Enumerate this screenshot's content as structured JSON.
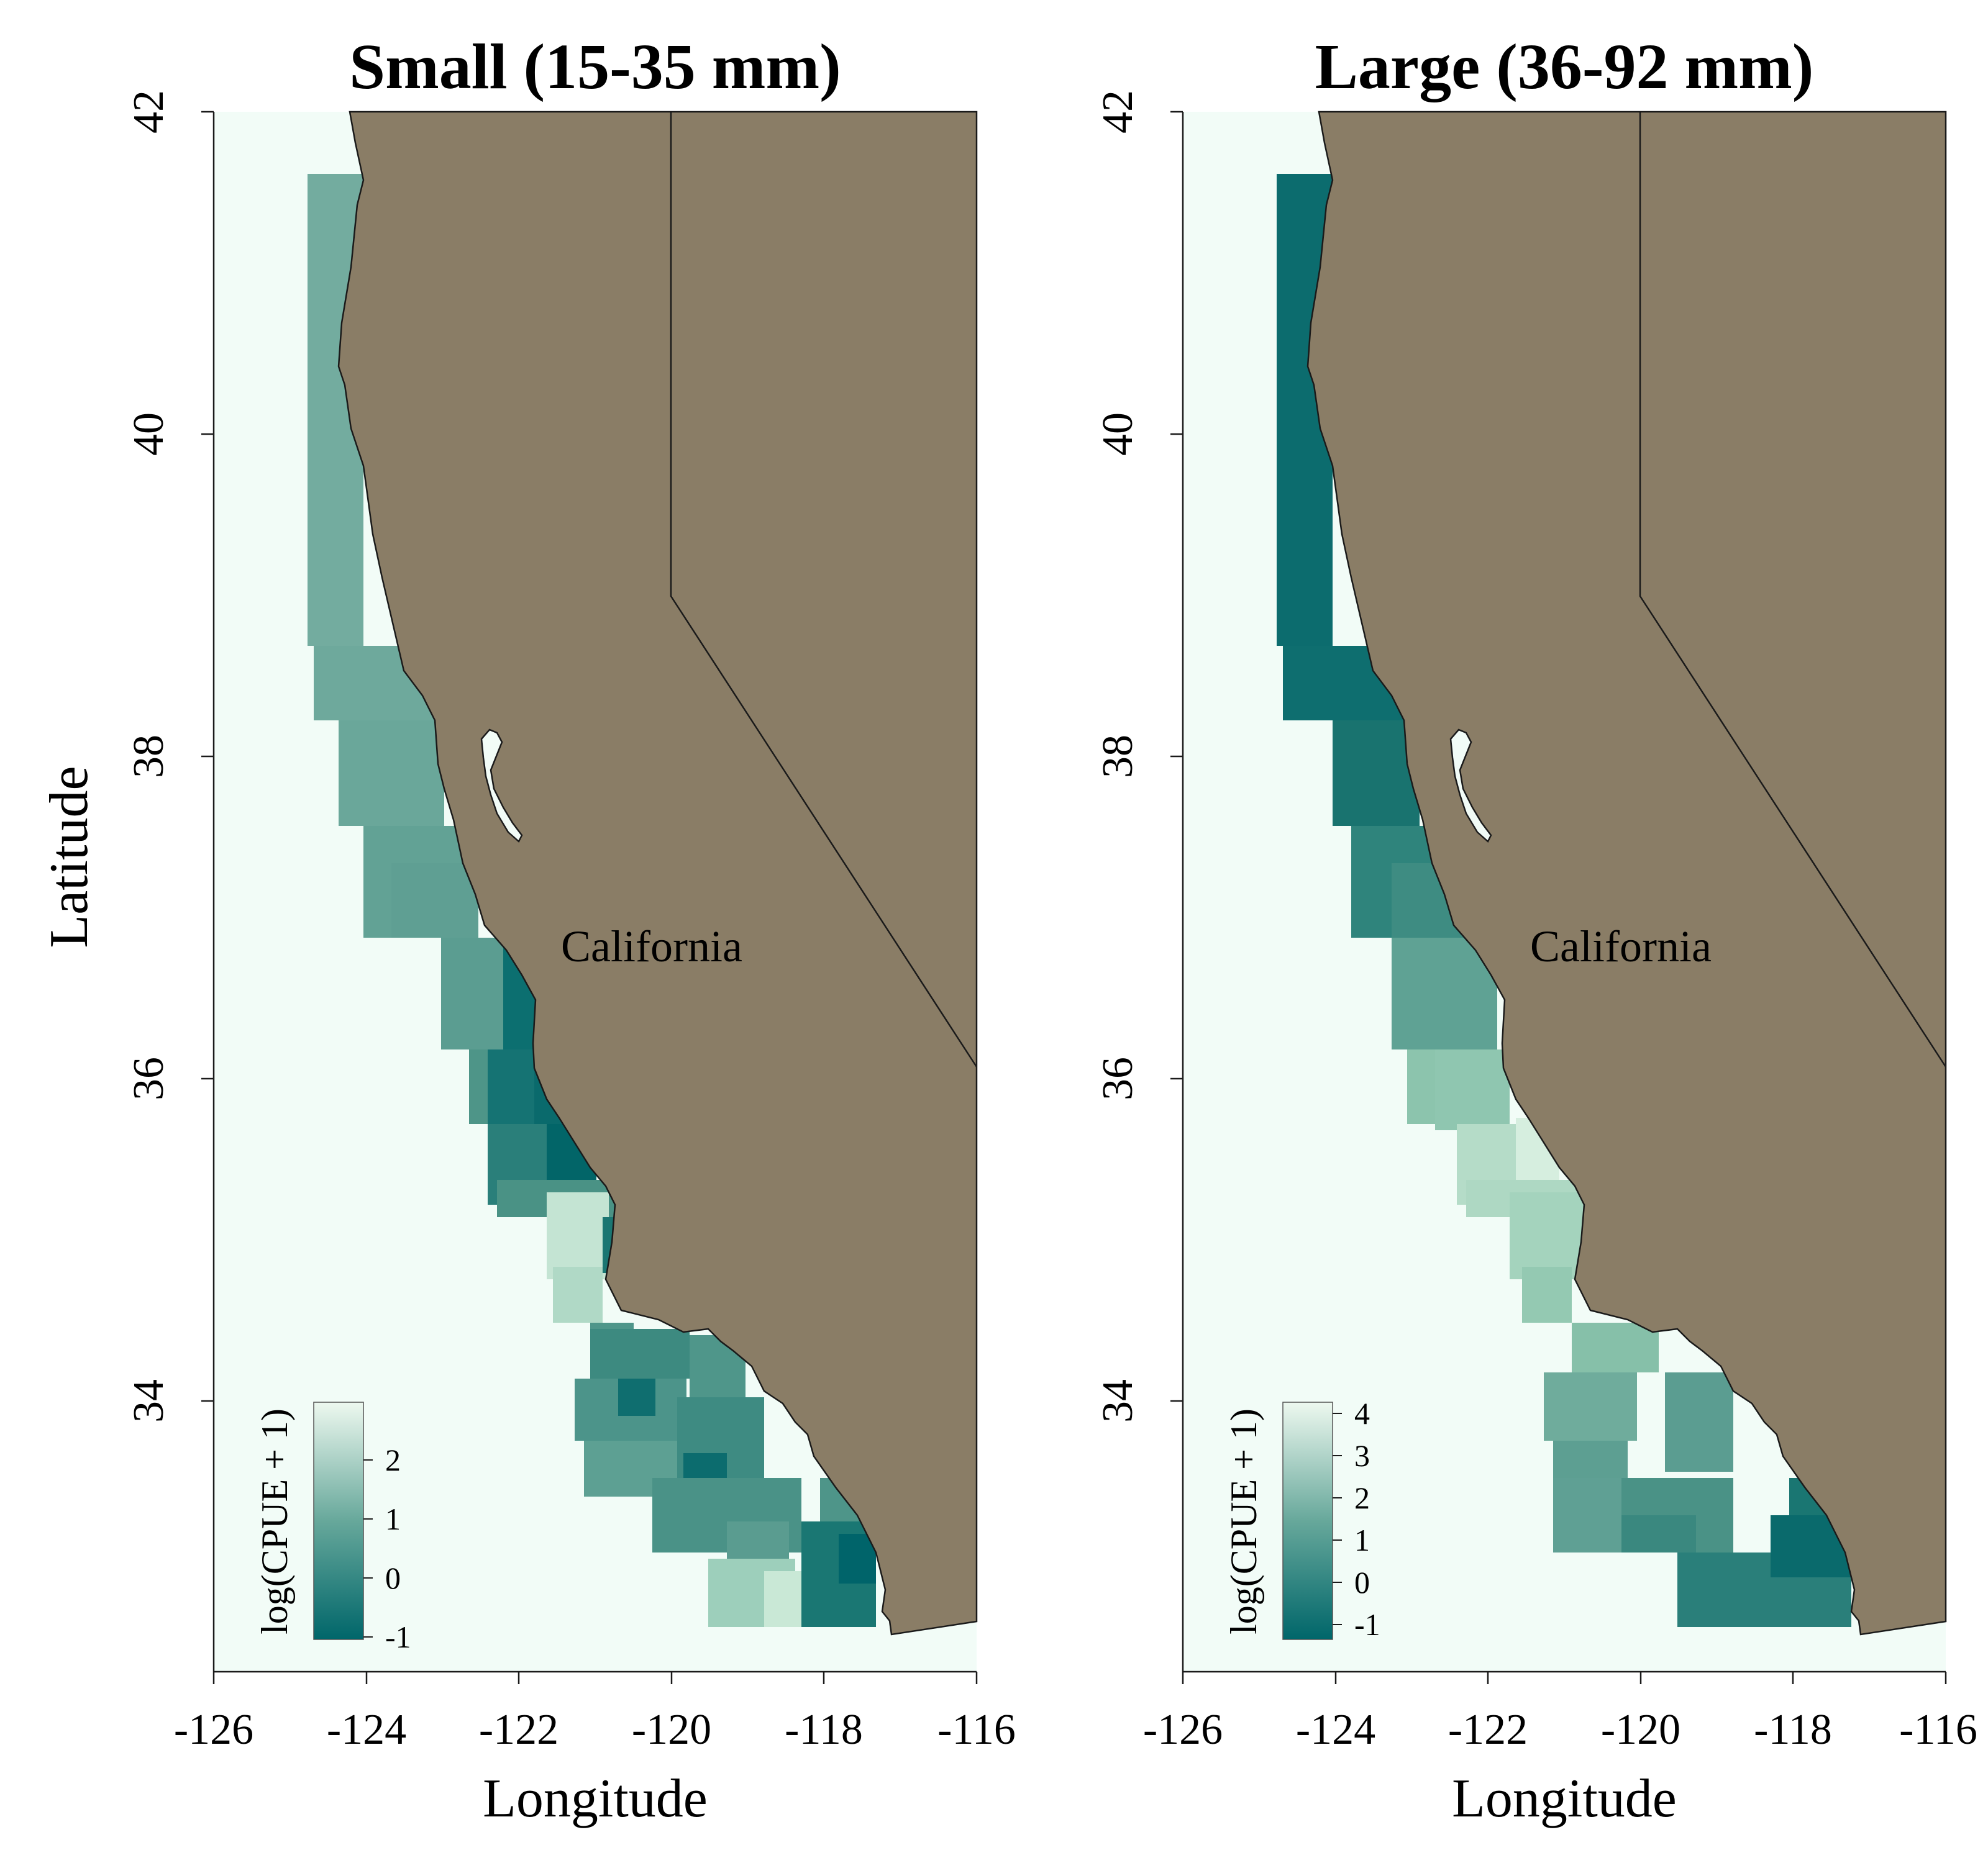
{
  "colors": {
    "ocean": "#f2fcf7",
    "land": "#8a7d66",
    "border": "#1a1a1a",
    "scale_low": "#00666a",
    "scale_mid": "#67a89b",
    "scale_high": "#edf8ef"
  },
  "y_axis_label": "Latitude",
  "panels": [
    {
      "title": "Small (15-35 mm)",
      "xlabel": "Longitude",
      "place_label": "California",
      "legend_title": "log(CPUE + 1)",
      "x_ticks": [
        "-126",
        "-124",
        "-122",
        "-120",
        "-118",
        "-116"
      ],
      "y_ticks": [
        "42",
        "40",
        "38",
        "36",
        "34"
      ],
      "legend_ticks": [
        "-1",
        "0",
        "1",
        "2"
      ],
      "cells": [
        {
          "lon": -124.4,
          "lat": 41.3,
          "value": 1.2
        },
        {
          "lon": -124.4,
          "lat": 40.5,
          "value": 1.0
        },
        {
          "lon": -124.2,
          "lat": 39.7,
          "value": 0.9
        },
        {
          "lon": -124.0,
          "lat": 38.9,
          "value": 0.9
        },
        {
          "lon": -123.6,
          "lat": 38.3,
          "value": 0.8
        },
        {
          "lon": -123.0,
          "lat": 37.7,
          "value": 0.7
        },
        {
          "lon": -122.6,
          "lat": 37.1,
          "value": 0.5
        },
        {
          "lon": -122.3,
          "lat": 36.6,
          "value": 0.1
        },
        {
          "lon": -121.9,
          "lat": 36.0,
          "value": -0.3
        },
        {
          "lon": -121.6,
          "lat": 35.6,
          "value": -0.6
        },
        {
          "lon": -121.2,
          "lat": 35.0,
          "value": 2.2
        },
        {
          "lon": -121.0,
          "lat": 34.6,
          "value": 1.4
        },
        {
          "lon": -120.6,
          "lat": 34.0,
          "value": 0.4
        },
        {
          "lon": -120.3,
          "lat": 33.6,
          "value": 0.5
        },
        {
          "lon": -119.4,
          "lat": 33.9,
          "value": 0.6
        },
        {
          "lon": -119.2,
          "lat": 33.4,
          "value": 0.3
        },
        {
          "lon": -119.0,
          "lat": 32.9,
          "value": 0.6
        },
        {
          "lon": -118.4,
          "lat": 32.7,
          "value": 1.7
        },
        {
          "lon": -118.1,
          "lat": 33.1,
          "value": 0.1
        },
        {
          "lon": -117.8,
          "lat": 32.7,
          "value": -0.5
        }
      ]
    },
    {
      "title": "Large (36-92 mm)",
      "xlabel": "Longitude",
      "place_label": "California",
      "legend_title": "log(CPUE + 1)",
      "x_ticks": [
        "-126",
        "-124",
        "-122",
        "-120",
        "-118",
        "-116"
      ],
      "y_ticks": [
        "42",
        "40",
        "38",
        "36",
        "34"
      ],
      "legend_ticks": [
        "-1",
        "0",
        "1",
        "2",
        "3",
        "4"
      ],
      "cells": [
        {
          "lon": -124.4,
          "lat": 41.3,
          "value": -0.4
        },
        {
          "lon": -124.4,
          "lat": 40.5,
          "value": -0.6
        },
        {
          "lon": -124.2,
          "lat": 39.7,
          "value": -0.8
        },
        {
          "lon": -124.0,
          "lat": 38.9,
          "value": -0.6
        },
        {
          "lon": -123.6,
          "lat": 38.3,
          "value": -0.4
        },
        {
          "lon": -123.0,
          "lat": 37.7,
          "value": 0.0
        },
        {
          "lon": -122.6,
          "lat": 37.1,
          "value": 0.6
        },
        {
          "lon": -122.3,
          "lat": 36.6,
          "value": 1.6
        },
        {
          "lon": -121.9,
          "lat": 36.0,
          "value": 2.6
        },
        {
          "lon": -121.6,
          "lat": 35.6,
          "value": 3.4
        },
        {
          "lon": -121.2,
          "lat": 35.0,
          "value": 2.6
        },
        {
          "lon": -121.0,
          "lat": 34.6,
          "value": 2.2
        },
        {
          "lon": -120.6,
          "lat": 34.0,
          "value": 1.9
        },
        {
          "lon": -120.3,
          "lat": 33.6,
          "value": 1.2
        },
        {
          "lon": -119.4,
          "lat": 33.9,
          "value": 1.2
        },
        {
          "lon": -119.2,
          "lat": 33.4,
          "value": 0.9
        },
        {
          "lon": -119.0,
          "lat": 32.9,
          "value": 0.6
        },
        {
          "lon": -118.4,
          "lat": 32.7,
          "value": 0.4
        },
        {
          "lon": -118.1,
          "lat": 33.1,
          "value": -0.2
        },
        {
          "lon": -117.8,
          "lat": 32.7,
          "value": -0.4
        }
      ]
    }
  ]
}
